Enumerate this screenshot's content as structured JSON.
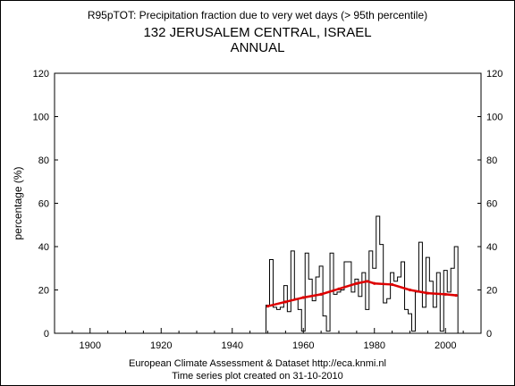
{
  "header": {
    "title": "R95pTOT: Precipitation fraction due to very wet days (> 95th percentile)",
    "station": "132 JERUSALEM CENTRAL, ISRAEL",
    "period": "ANNUAL"
  },
  "footer": {
    "line1": "European Climate Assessment & Dataset  http://eca.knmi.nl",
    "line2": "Time series plot created on 31-10-2010"
  },
  "chart_data": {
    "type": "line",
    "title": "R95pTOT: Precipitation fraction due to very wet days (> 95th percentile)",
    "ylabel": "percentage (%)",
    "xlabel": "",
    "xlim": [
      1890,
      2010
    ],
    "ylim": [
      0,
      120
    ],
    "x_ticks": [
      1900,
      1920,
      1940,
      1960,
      1980,
      2000
    ],
    "y_ticks": [
      0,
      20,
      40,
      60,
      80,
      100,
      120
    ],
    "grid": false,
    "colors": {
      "annual": "#000000",
      "smoothed": "#dd0000"
    },
    "series": [
      {
        "style": "step",
        "x": [
          1950,
          1951,
          1952,
          1953,
          1954,
          1955,
          1956,
          1957,
          1958,
          1959,
          1960,
          1961,
          1962,
          1963,
          1964,
          1965,
          1966,
          1967,
          1968,
          1969,
          1970,
          1971,
          1972,
          1973,
          1974,
          1975,
          1976,
          1977,
          1978,
          1979,
          1980,
          1981,
          1982,
          1983,
          1984,
          1985,
          1986,
          1987,
          1988,
          1989,
          1990,
          1991,
          1992,
          1993,
          1994,
          1995,
          1996,
          1997,
          1998,
          1999,
          2000,
          2001,
          2002,
          2003
        ],
        "values": [
          13,
          34,
          12,
          11,
          12,
          22,
          10,
          38,
          16,
          11,
          1,
          37,
          25,
          15,
          26,
          31,
          8,
          1,
          37,
          18,
          19,
          20,
          33,
          33,
          19,
          25,
          17,
          28,
          11,
          38,
          30,
          54,
          41,
          14,
          16,
          28,
          24,
          26,
          33,
          11,
          9,
          1,
          19,
          42,
          12,
          35,
          24,
          12,
          28,
          1,
          29,
          19,
          30,
          40
        ]
      },
      {
        "style": "smooth",
        "x": [
          1950,
          1955,
          1960,
          1965,
          1970,
          1975,
          1978,
          1980,
          1985,
          1990,
          1995,
          2000,
          2003
        ],
        "values": [
          12.5,
          14.5,
          16.5,
          18,
          20.5,
          23,
          24,
          23,
          22.5,
          20,
          18.5,
          18,
          17.5
        ]
      }
    ]
  }
}
